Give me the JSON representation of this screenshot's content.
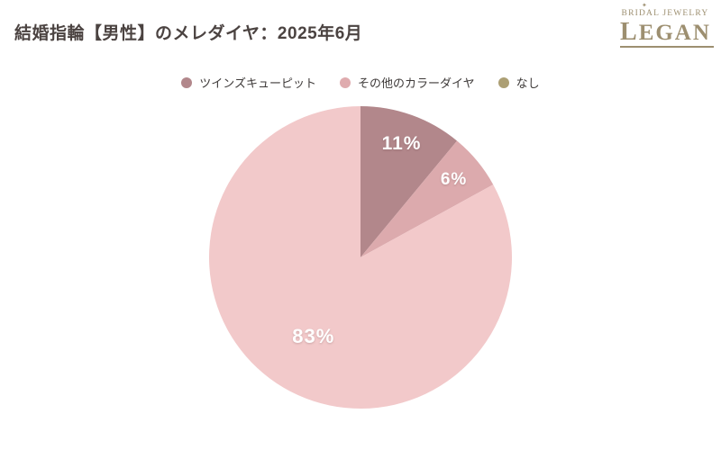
{
  "page": {
    "title": "結婚指輪【男性】のメレダイヤ：2025年6月"
  },
  "logo": {
    "subtitle": "BRIDAL JEWELRY",
    "name_initial": "L",
    "name_rest": "EGAN",
    "sparkle": "✦"
  },
  "colors": {
    "background": "#ffffff",
    "title_text": "#4b4341",
    "legend_text": "#3e3a39",
    "brand": "#9d8f70",
    "label_text": "#ffffff"
  },
  "chart_data": {
    "type": "pie",
    "title": "結婚指輪【男性】のメレダイヤ：2025年6月",
    "unit": "%",
    "legend_position": "top",
    "start_angle_deg": 0,
    "direction": "clockwise",
    "grid": false,
    "slices": [
      {
        "label": "ツインズキューピット",
        "value": 11,
        "display": "11%",
        "color": "#b2878b",
        "legend_color": "#b2878b",
        "label_r": 0.8,
        "label_size": 21
      },
      {
        "label": "その他のカラーダイヤ",
        "value": 6,
        "display": "6%",
        "color": "#dcaaad",
        "legend_color": "#dfabae",
        "label_r": 0.8,
        "label_size": 19
      },
      {
        "label": "なし",
        "value": 83,
        "display": "83%",
        "color": "#f2c9ca",
        "legend_color": "#ac9f74",
        "label_r": 0.61,
        "label_size": 22
      }
    ]
  }
}
